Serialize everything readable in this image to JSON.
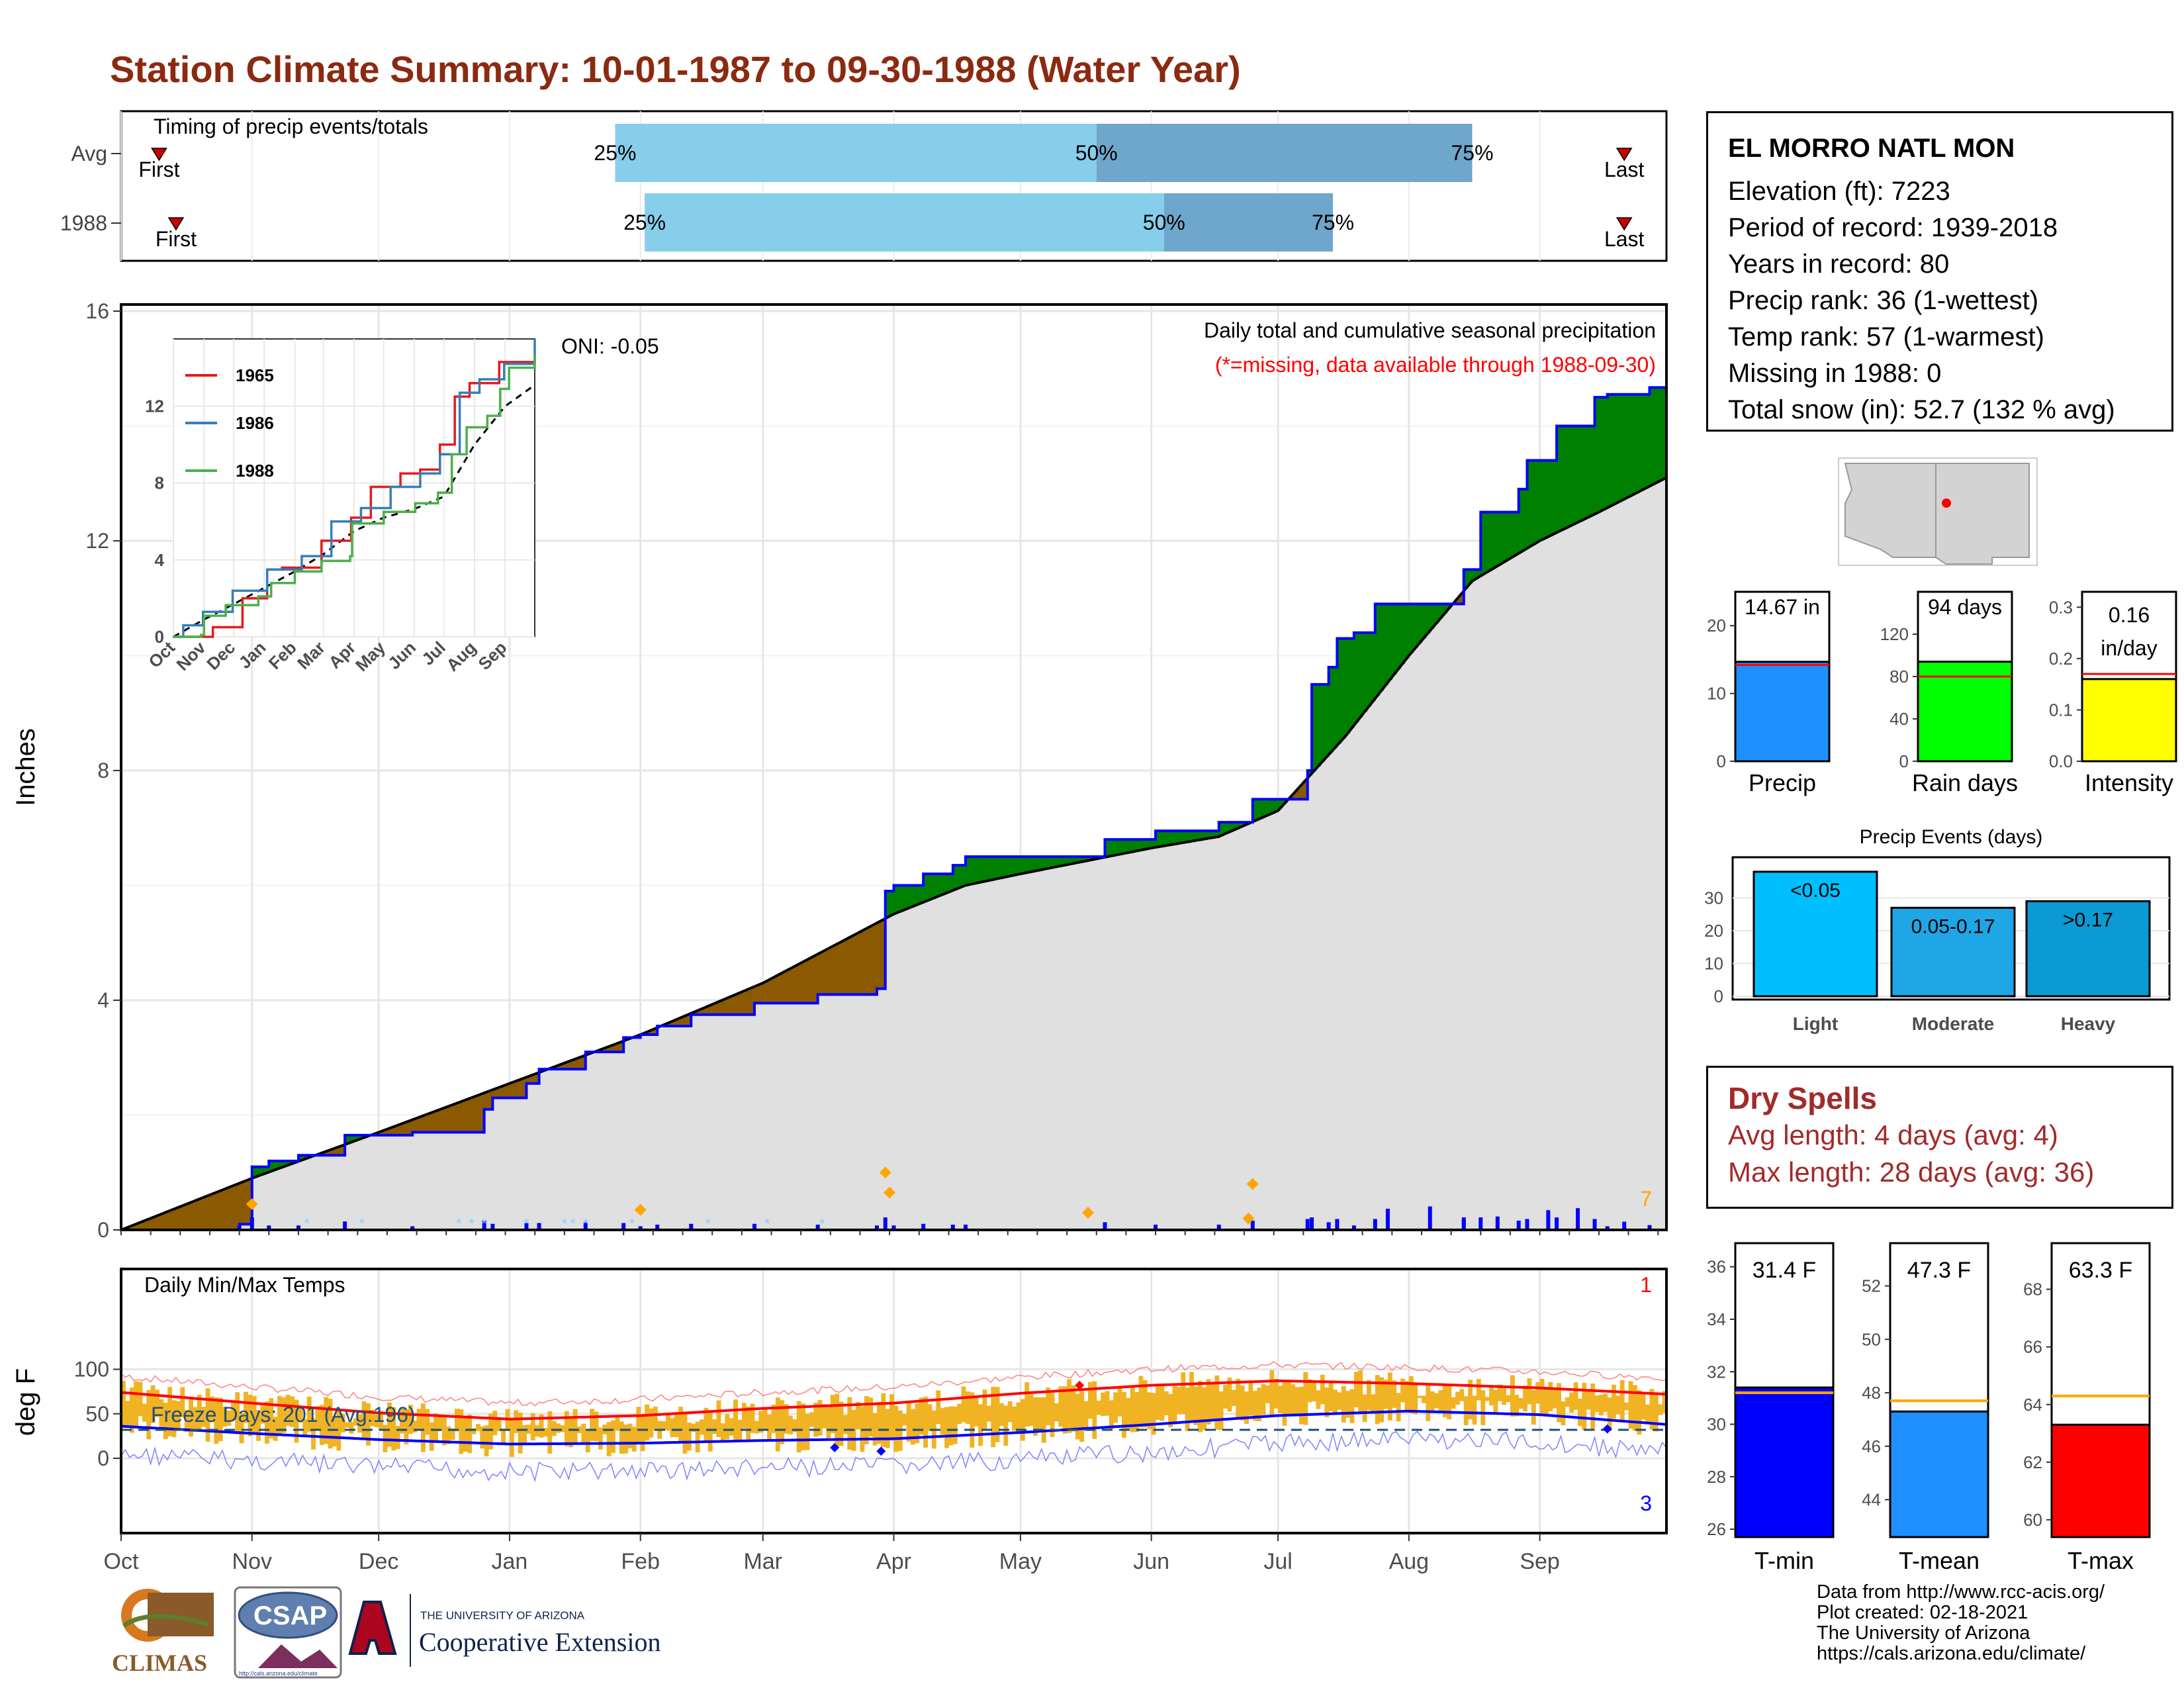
{
  "title": "Station Climate Summary: 10-01-1987 to 09-30-1988 (Water Year)",
  "colors": {
    "title": "#8b2a10",
    "surplus": "#008000",
    "deficit": "#8b5a00",
    "avg_fill": "#e0e0e0",
    "cum_line": "#0000ff",
    "daily_bar": "#0000ff",
    "snow": "#87cefa",
    "temp_bar": "#f0b323",
    "tmax_line": "#ff0000",
    "tmin_line": "#0000ff",
    "q_light": "#87ceeb",
    "q_dark": "#6fa6cc",
    "dry_text": "#a32a2a"
  },
  "timing": {
    "title": "Timing of precip events/totals",
    "rows": [
      {
        "label": "Avg",
        "first_label": "First",
        "last_label": "Last",
        "p25": "25%",
        "p50": "50%",
        "p75": "75%",
        "first_day": 9,
        "p25_day": 117,
        "p50_day": 231,
        "p75_day": 320,
        "last_day": 356
      },
      {
        "label": "1988",
        "first_label": "First",
        "last_label": "Last",
        "p25": "25%",
        "p50": "50%",
        "p75": "75%",
        "first_day": 13,
        "p25_day": 124,
        "p50_day": 247,
        "p75_day": 287,
        "last_day": 356
      }
    ]
  },
  "main": {
    "ylabel": "Inches",
    "subtitle": "Daily total and cumulative seasonal precipitation",
    "missing_note": "(*=missing, data available through 1988-09-30)",
    "oni": "ONI: -0.05",
    "count_label": "7",
    "yticks": [
      "0",
      "4",
      "8",
      "12",
      "16"
    ],
    "months": [
      "Oct",
      "Nov",
      "Dec",
      "Jan",
      "Feb",
      "Mar",
      "Apr",
      "May",
      "Jun",
      "Jul",
      "Aug",
      "Sep"
    ],
    "month_days": [
      0,
      31,
      61,
      92,
      123,
      152,
      183,
      213,
      244,
      274,
      305,
      336
    ]
  },
  "inset": {
    "yticks": [
      "0",
      "4",
      "8",
      "12"
    ],
    "months": [
      "Oct",
      "Nov",
      "Dec",
      "Jan",
      "Feb",
      "Mar",
      "Apr",
      "May",
      "Jun",
      "Jul",
      "Aug",
      "Sep"
    ],
    "legend": [
      {
        "name": "1965",
        "color": "#e41a1c"
      },
      {
        "name": "1986",
        "color": "#377eb8"
      },
      {
        "name": "1988",
        "color": "#4daf4a"
      }
    ]
  },
  "station": {
    "name": "EL MORRO NATL MON",
    "lines": [
      "Elevation (ft): 7223",
      "Period of record: 1939-2018",
      "Years in record: 80",
      "Precip rank: 36 (1-wettest)",
      "Temp rank: 57 (1-warmest)",
      "Missing in 1988: 0",
      "Total snow (in): 52.7 (132 % avg)"
    ]
  },
  "mini_bars": [
    {
      "label": "Precip",
      "value_label": "14.67 in",
      "yticks": [
        "0",
        "10",
        "20"
      ],
      "ymax": 25,
      "value": 14.67,
      "avg": 14.2,
      "color": "#1e90ff"
    },
    {
      "label": "Rain days",
      "value_label": "94 days",
      "yticks": [
        "0",
        "40",
        "80",
        "120"
      ],
      "ymax": 160,
      "value": 94,
      "avg": 80,
      "color": "#00ff00"
    },
    {
      "label": "Intensity",
      "value_label_1": "0.16",
      "value_label_2": "in/day",
      "yticks": [
        "0.0",
        "0.1",
        "0.2",
        "0.3"
      ],
      "ymax": 0.33,
      "value": 0.16,
      "avg": 0.17,
      "color": "#ffff00"
    }
  ],
  "events": {
    "title": "Precip Events (days)",
    "yticks": [
      "0",
      "10",
      "20",
      "30"
    ],
    "bars": [
      {
        "name": "Light",
        "label": "<0.05",
        "value": 38,
        "color": "#00bfff"
      },
      {
        "name": "Moderate",
        "label": "0.05-0.17",
        "value": 27,
        "color": "#1ea6e6"
      },
      {
        "name": "Heavy",
        "label": ">0.17",
        "value": 29,
        "color": "#0b9ad1"
      }
    ]
  },
  "dry": {
    "title": "Dry Spells",
    "avg_line": "Avg length: 4 days (avg: 4)",
    "max_line": "Max length: 28 days (avg: 36)"
  },
  "temps": {
    "ylabel": "deg F",
    "title": "Daily Min/Max Temps",
    "freeze_label": "Freeze Days: 201 (Avg:196)",
    "top_count": "1",
    "bottom_count": "3",
    "yticks": [
      "0",
      "50",
      "100"
    ]
  },
  "temp_bars": [
    {
      "label": "T-min",
      "value_label": "31.4 F",
      "yticks": [
        "26",
        "28",
        "30",
        "32",
        "34",
        "36"
      ],
      "ymin": 25.7,
      "ymax": 36.9,
      "value": 31.4,
      "avg": 31.2,
      "color": "#0000ff"
    },
    {
      "label": "T-mean",
      "value_label": "47.3 F",
      "yticks": [
        "44",
        "46",
        "48",
        "50",
        "52"
      ],
      "ymin": 42.6,
      "ymax": 53.6,
      "value": 47.3,
      "avg": 47.7,
      "color": "#1e90ff"
    },
    {
      "label": "T-max",
      "value_label": "63.3 F",
      "yticks": [
        "60",
        "62",
        "64",
        "66",
        "68"
      ],
      "ymin": 59.4,
      "ymax": 69.6,
      "value": 63.3,
      "avg": 64.3,
      "color": "#ff0000"
    }
  ],
  "credits": [
    "Data from http://www.rcc-acis.org/",
    "Plot created: 02-18-2021",
    "The University of Arizona",
    "https://cals.arizona.edu/climate/"
  ],
  "logos": {
    "climas": "CLIMAS",
    "csap": "CSAP",
    "csap_url": "http://cals.arizona.edu/climate",
    "ua_top": "THE UNIVERSITY OF ARIZONA",
    "ua_bottom": "Cooperative Extension"
  }
}
